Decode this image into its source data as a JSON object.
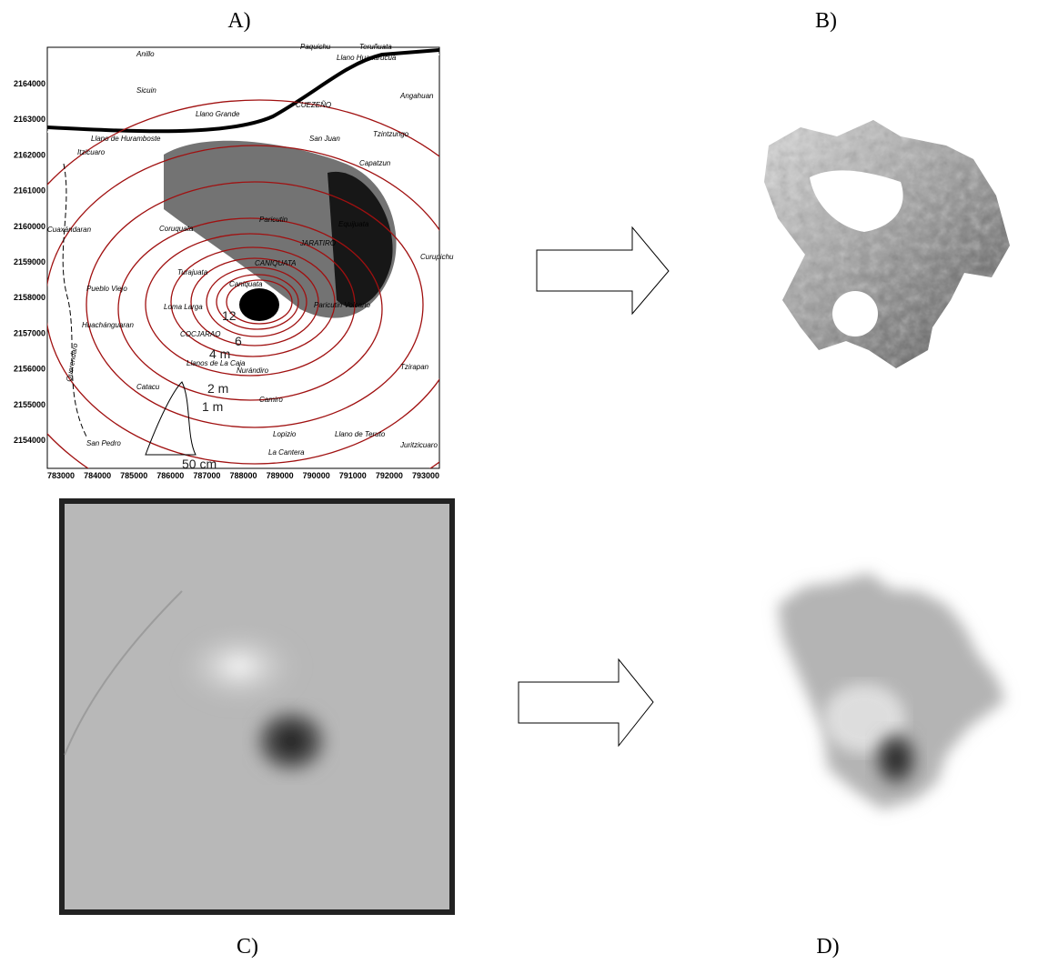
{
  "panels": [
    {
      "label": "A)"
    },
    {
      "label": "B)"
    },
    {
      "label": "C)"
    },
    {
      "label": "D)"
    }
  ],
  "map": {
    "xticks": [
      783000,
      784000,
      785000,
      786000,
      787000,
      788000,
      789000,
      790000,
      791000,
      792000,
      793000
    ],
    "yticks": [
      2164000,
      2163000,
      2162000,
      2161000,
      2160000,
      2159000,
      2158000,
      2157000,
      2156000,
      2155000,
      2154000
    ],
    "places": [
      "Anillo",
      "Paquichu",
      "Teruñuata",
      "Llano Huanarucua",
      "Angahuan",
      "Sicuin",
      "CUEZEÑO",
      "Llano Grande",
      "Tzintzungo",
      "Llano de Huramboste",
      "San Juan",
      "Itzicuaro",
      "Capatzun",
      "Paricutin",
      "Equijuata",
      "Cuaxándaran",
      "Coruquata",
      "JARATIRO",
      "Curupichu",
      "CANIQUATA",
      "Turajuata",
      "Pueblo Viejo",
      "Caniquata",
      "Loma Larga",
      "Paricutin Volcano",
      "Huachánguaran",
      "COCJARAO",
      "Llanos de La Caja",
      "Nurándiro",
      "Tzirapan",
      "Catacu",
      "Camiro",
      "Lopizio",
      "Llano de Teruto",
      "San Pedro",
      "La Cantera",
      "Juritzicuaro",
      "Querendaro"
    ],
    "contour_labels": [
      "12",
      "6",
      "4 m",
      "2 m",
      "1 m",
      "50 cm"
    ]
  }
}
